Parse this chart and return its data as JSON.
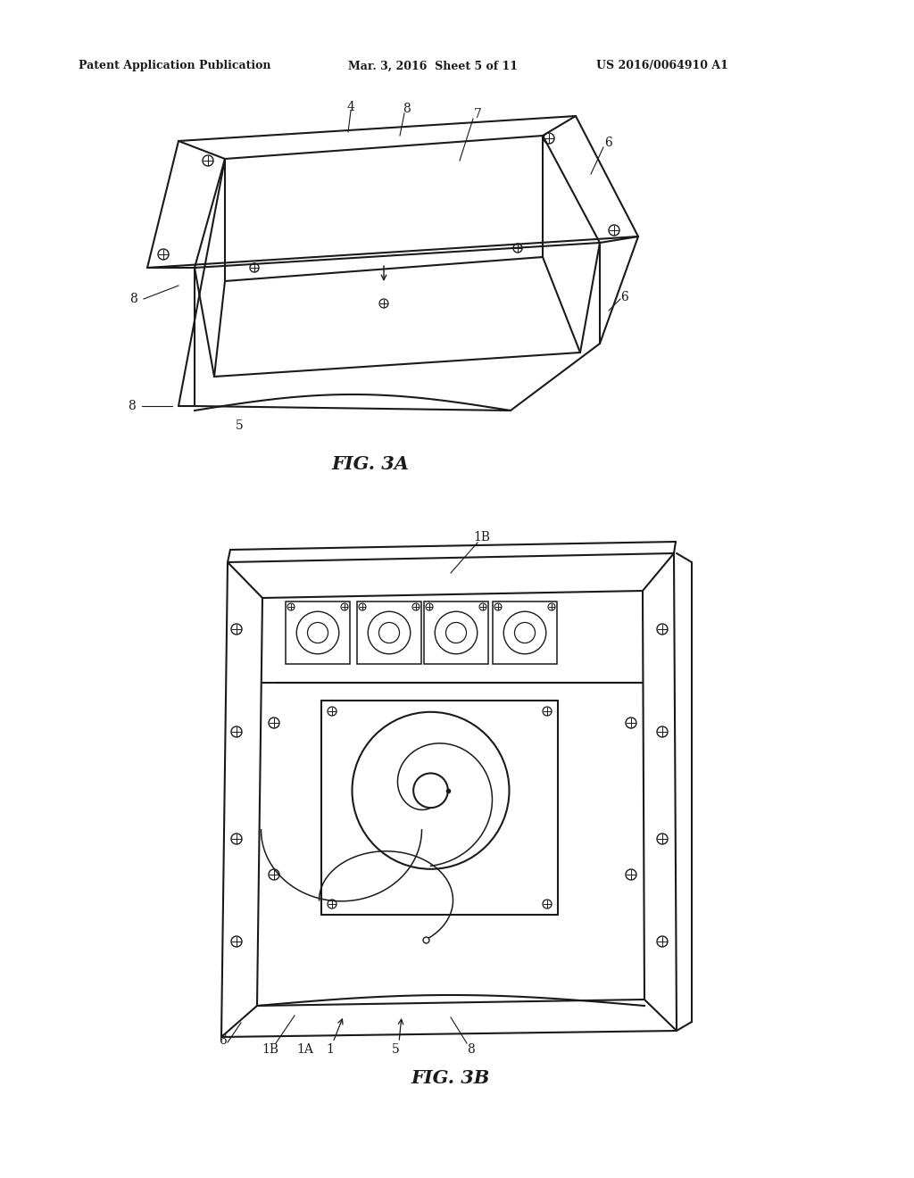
{
  "background_color": "#ffffff",
  "header_left": "Patent Application Publication",
  "header_mid": "Mar. 3, 2016  Sheet 5 of 11",
  "header_right": "US 2016/0064910 A1",
  "fig3a_label": "FIG. 3A",
  "fig3b_label": "FIG. 3B",
  "line_color": "#1a1a1a",
  "line_width": 1.5,
  "thin_line": 0.8
}
